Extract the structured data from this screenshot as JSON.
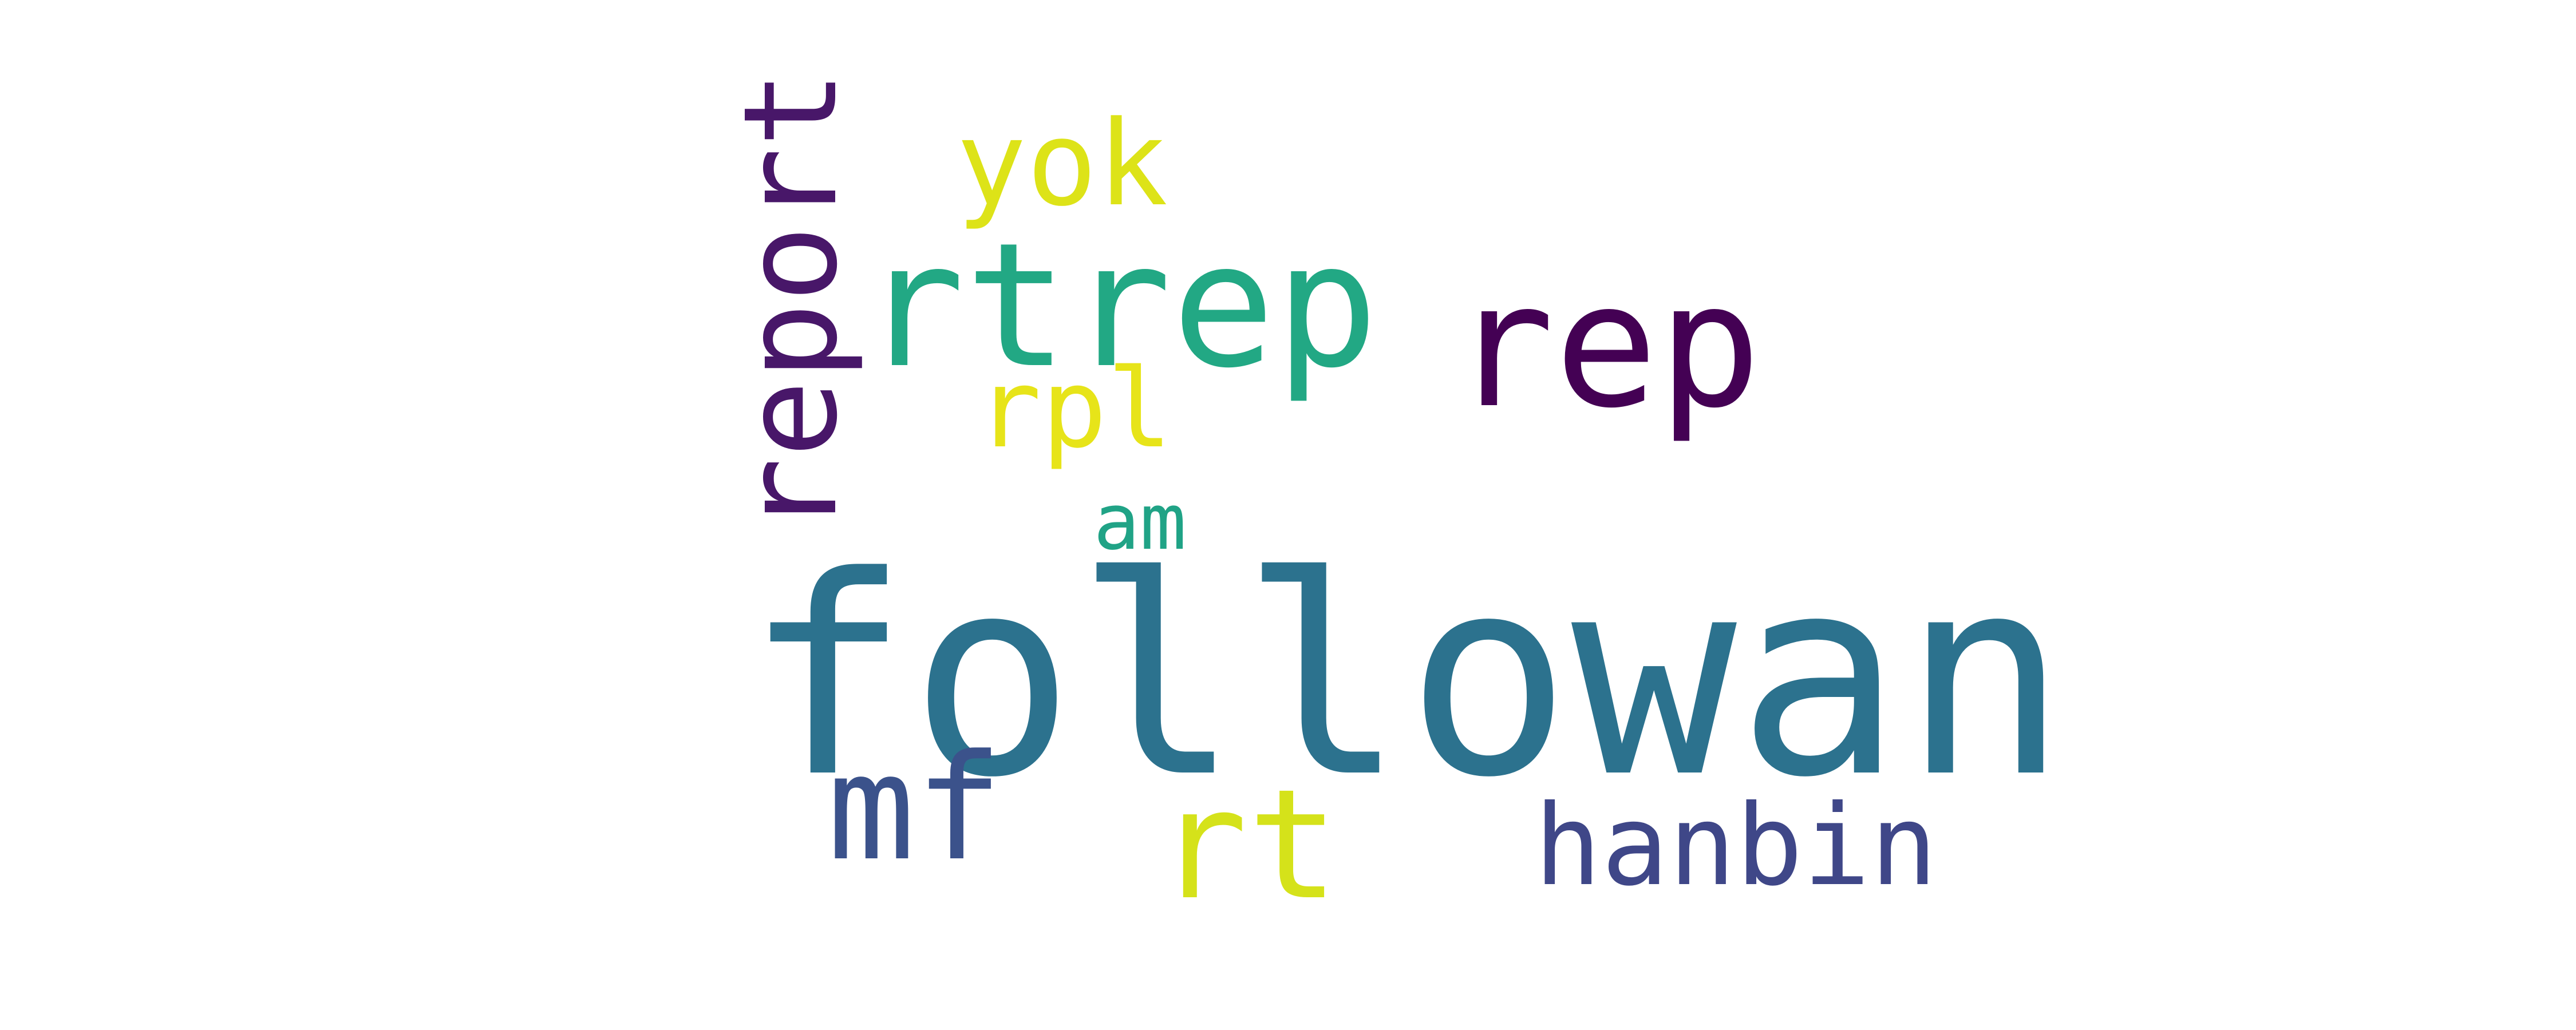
{
  "words": [
    {
      "id": "followan",
      "text": "followan",
      "color": "#2c728e"
    },
    {
      "id": "rtrep",
      "text": "rtrep",
      "color": "#22a884"
    },
    {
      "id": "rep",
      "text": "rep",
      "color": "#440154"
    },
    {
      "id": "report",
      "text": "report",
      "color": "#481769"
    },
    {
      "id": "rt",
      "text": "rt",
      "color": "#d5e21a"
    },
    {
      "id": "mf",
      "text": "mf",
      "color": "#3b528b"
    },
    {
      "id": "hanbin",
      "text": "hanbin",
      "color": "#3f4788"
    },
    {
      "id": "yok",
      "text": "yok",
      "color": "#dde318"
    },
    {
      "id": "rpl",
      "text": "rpl",
      "color": "#e7e419"
    },
    {
      "id": "am",
      "text": "am",
      "color": "#20a386"
    }
  ]
}
